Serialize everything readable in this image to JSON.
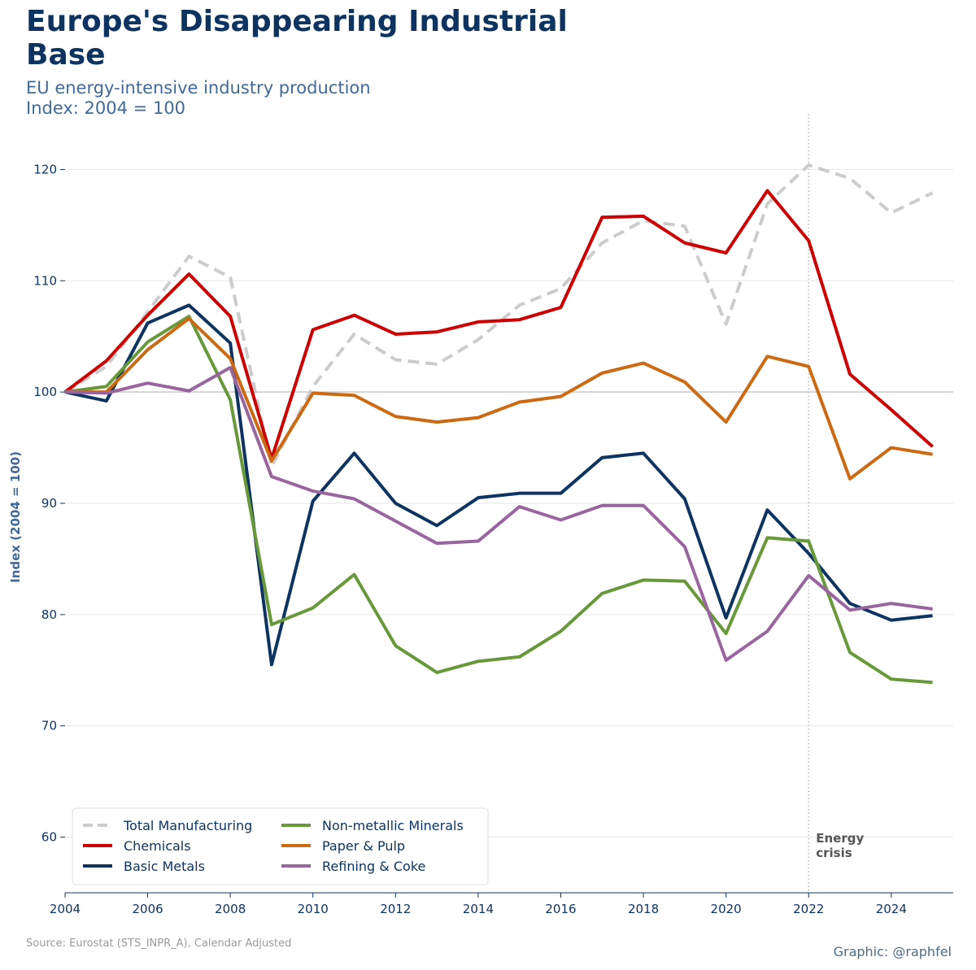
{
  "header": {
    "title": "Europe's Disappearing Industrial Base",
    "subtitle_line1": "EU energy-intensive industry production",
    "subtitle_line2": "Index: 2004 = 100"
  },
  "footer": {
    "source": "Source: Eurostat (STS_INPR_A), Calendar Adjusted",
    "credit": "Graphic: @raphfel"
  },
  "chart_data": {
    "type": "line",
    "title": "Europe's Disappearing Industrial Base",
    "subtitle": "EU energy-intensive industry production, Index: 2004 = 100",
    "xlabel": "",
    "ylabel": "Index (2004 = 100)",
    "xlim": [
      2004,
      2025.5
    ],
    "ylim": [
      55,
      125
    ],
    "x_ticks": [
      2004,
      2006,
      2008,
      2010,
      2012,
      2014,
      2016,
      2018,
      2020,
      2022,
      2024
    ],
    "y_ticks": [
      60,
      70,
      80,
      90,
      100,
      110,
      120
    ],
    "grid": "horizontal",
    "reference_line": 100,
    "legend_position": "bottom-left",
    "x": [
      2004,
      2005,
      2006,
      2007,
      2008,
      2009,
      2010,
      2011,
      2012,
      2013,
      2014,
      2015,
      2016,
      2017,
      2018,
      2019,
      2020,
      2021,
      2022,
      2023,
      2024,
      2025
    ],
    "series": [
      {
        "name": "Total Manufacturing",
        "color": "#cccccc",
        "dashed": true,
        "values": [
          100,
          102.3,
          107.2,
          112.2,
          110.3,
          93.3,
          100.5,
          105.2,
          102.9,
          102.5,
          104.7,
          107.8,
          109.3,
          113.4,
          115.4,
          114.9,
          106.1,
          116.9,
          120.4,
          119.2,
          116.1,
          117.9
        ]
      },
      {
        "name": "Chemicals",
        "color": "#cc0000",
        "dashed": false,
        "values": [
          100,
          102.8,
          106.9,
          110.6,
          106.8,
          94.0,
          105.6,
          106.9,
          105.2,
          105.4,
          106.3,
          106.5,
          107.6,
          115.7,
          115.8,
          113.4,
          112.5,
          118.1,
          113.6,
          101.6,
          98.4,
          95.1
        ]
      },
      {
        "name": "Basic Metals",
        "color": "#0d3461",
        "dashed": false,
        "values": [
          100,
          99.2,
          106.2,
          107.8,
          104.4,
          75.5,
          90.2,
          94.5,
          90.0,
          88.0,
          90.5,
          90.9,
          90.9,
          94.1,
          94.5,
          90.4,
          79.7,
          89.4,
          85.5,
          81.0,
          79.5,
          79.9
        ]
      },
      {
        "name": "Non-metallic Minerals",
        "color": "#67993a",
        "dashed": false,
        "values": [
          100,
          100.5,
          104.5,
          106.8,
          99.3,
          79.1,
          80.6,
          83.6,
          77.2,
          74.8,
          75.8,
          76.2,
          78.5,
          81.9,
          83.1,
          83.0,
          78.3,
          86.9,
          86.6,
          76.6,
          74.2,
          73.9
        ]
      },
      {
        "name": "Paper & Pulp",
        "color": "#cc6a14",
        "dashed": false,
        "values": [
          100,
          100.0,
          103.8,
          106.6,
          103.0,
          93.8,
          99.9,
          99.7,
          97.8,
          97.3,
          97.7,
          99.1,
          99.6,
          101.7,
          102.6,
          100.9,
          97.3,
          103.2,
          102.3,
          92.2,
          95.0,
          94.4
        ]
      },
      {
        "name": "Refining & Coke",
        "color": "#99659e",
        "dashed": false,
        "values": [
          100,
          99.9,
          100.8,
          100.1,
          102.2,
          92.4,
          91.1,
          90.4,
          88.4,
          86.4,
          86.6,
          89.7,
          88.5,
          89.8,
          89.8,
          86.1,
          75.9,
          78.5,
          83.5,
          80.4,
          81.0,
          80.5
        ]
      }
    ],
    "annotation": {
      "x": 2022,
      "label_line1": "Energy",
      "label_line2": "crisis"
    }
  },
  "colors": {
    "title": "#0d3461",
    "subtitle": "#3f6a99",
    "grid": "#e6e6e6",
    "reference_line": "#d4d4d4",
    "annotation_line": "#bbbbbb",
    "annotation_text": "#555555"
  }
}
